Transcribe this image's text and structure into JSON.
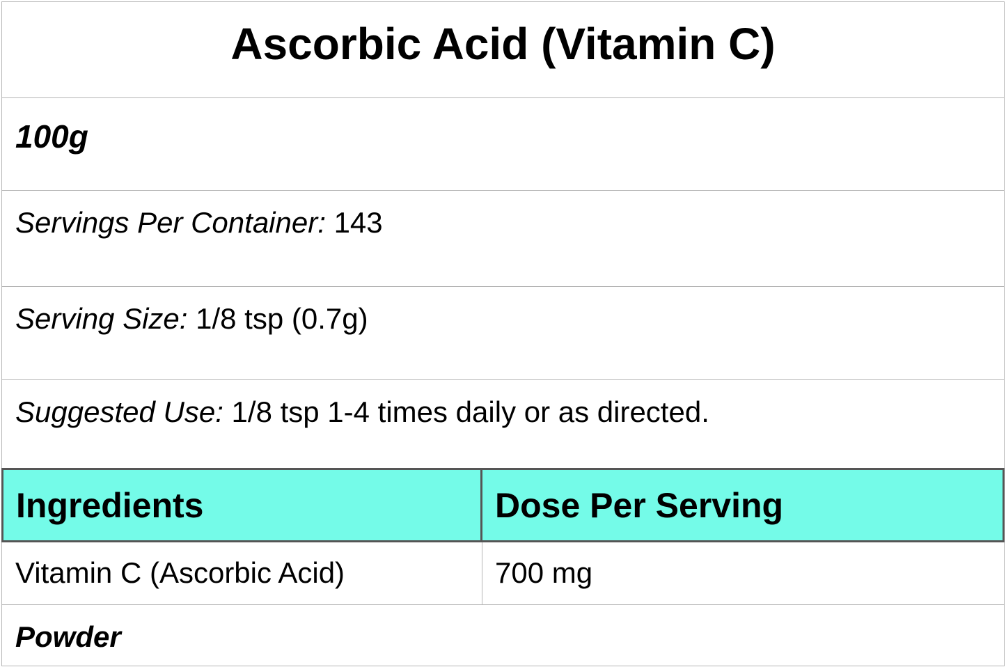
{
  "title": "Ascorbic Acid (Vitamin C)",
  "size": "100g",
  "servings": {
    "label": "Servings Per Container:",
    "value": "143"
  },
  "serving_size": {
    "label": "Serving Size:",
    "value": "1/8 tsp (0.7g)"
  },
  "suggested_use": {
    "label": "Suggested Use:",
    "value": "1/8 tsp 1-4 times daily or as directed."
  },
  "table": {
    "headers": [
      "Ingredients",
      "Dose Per Serving"
    ],
    "header_color": "#74fbe8",
    "rows": [
      {
        "ingredient": "Vitamin C (Ascorbic Acid)",
        "dose": "700 mg"
      }
    ]
  },
  "form": "Powder"
}
